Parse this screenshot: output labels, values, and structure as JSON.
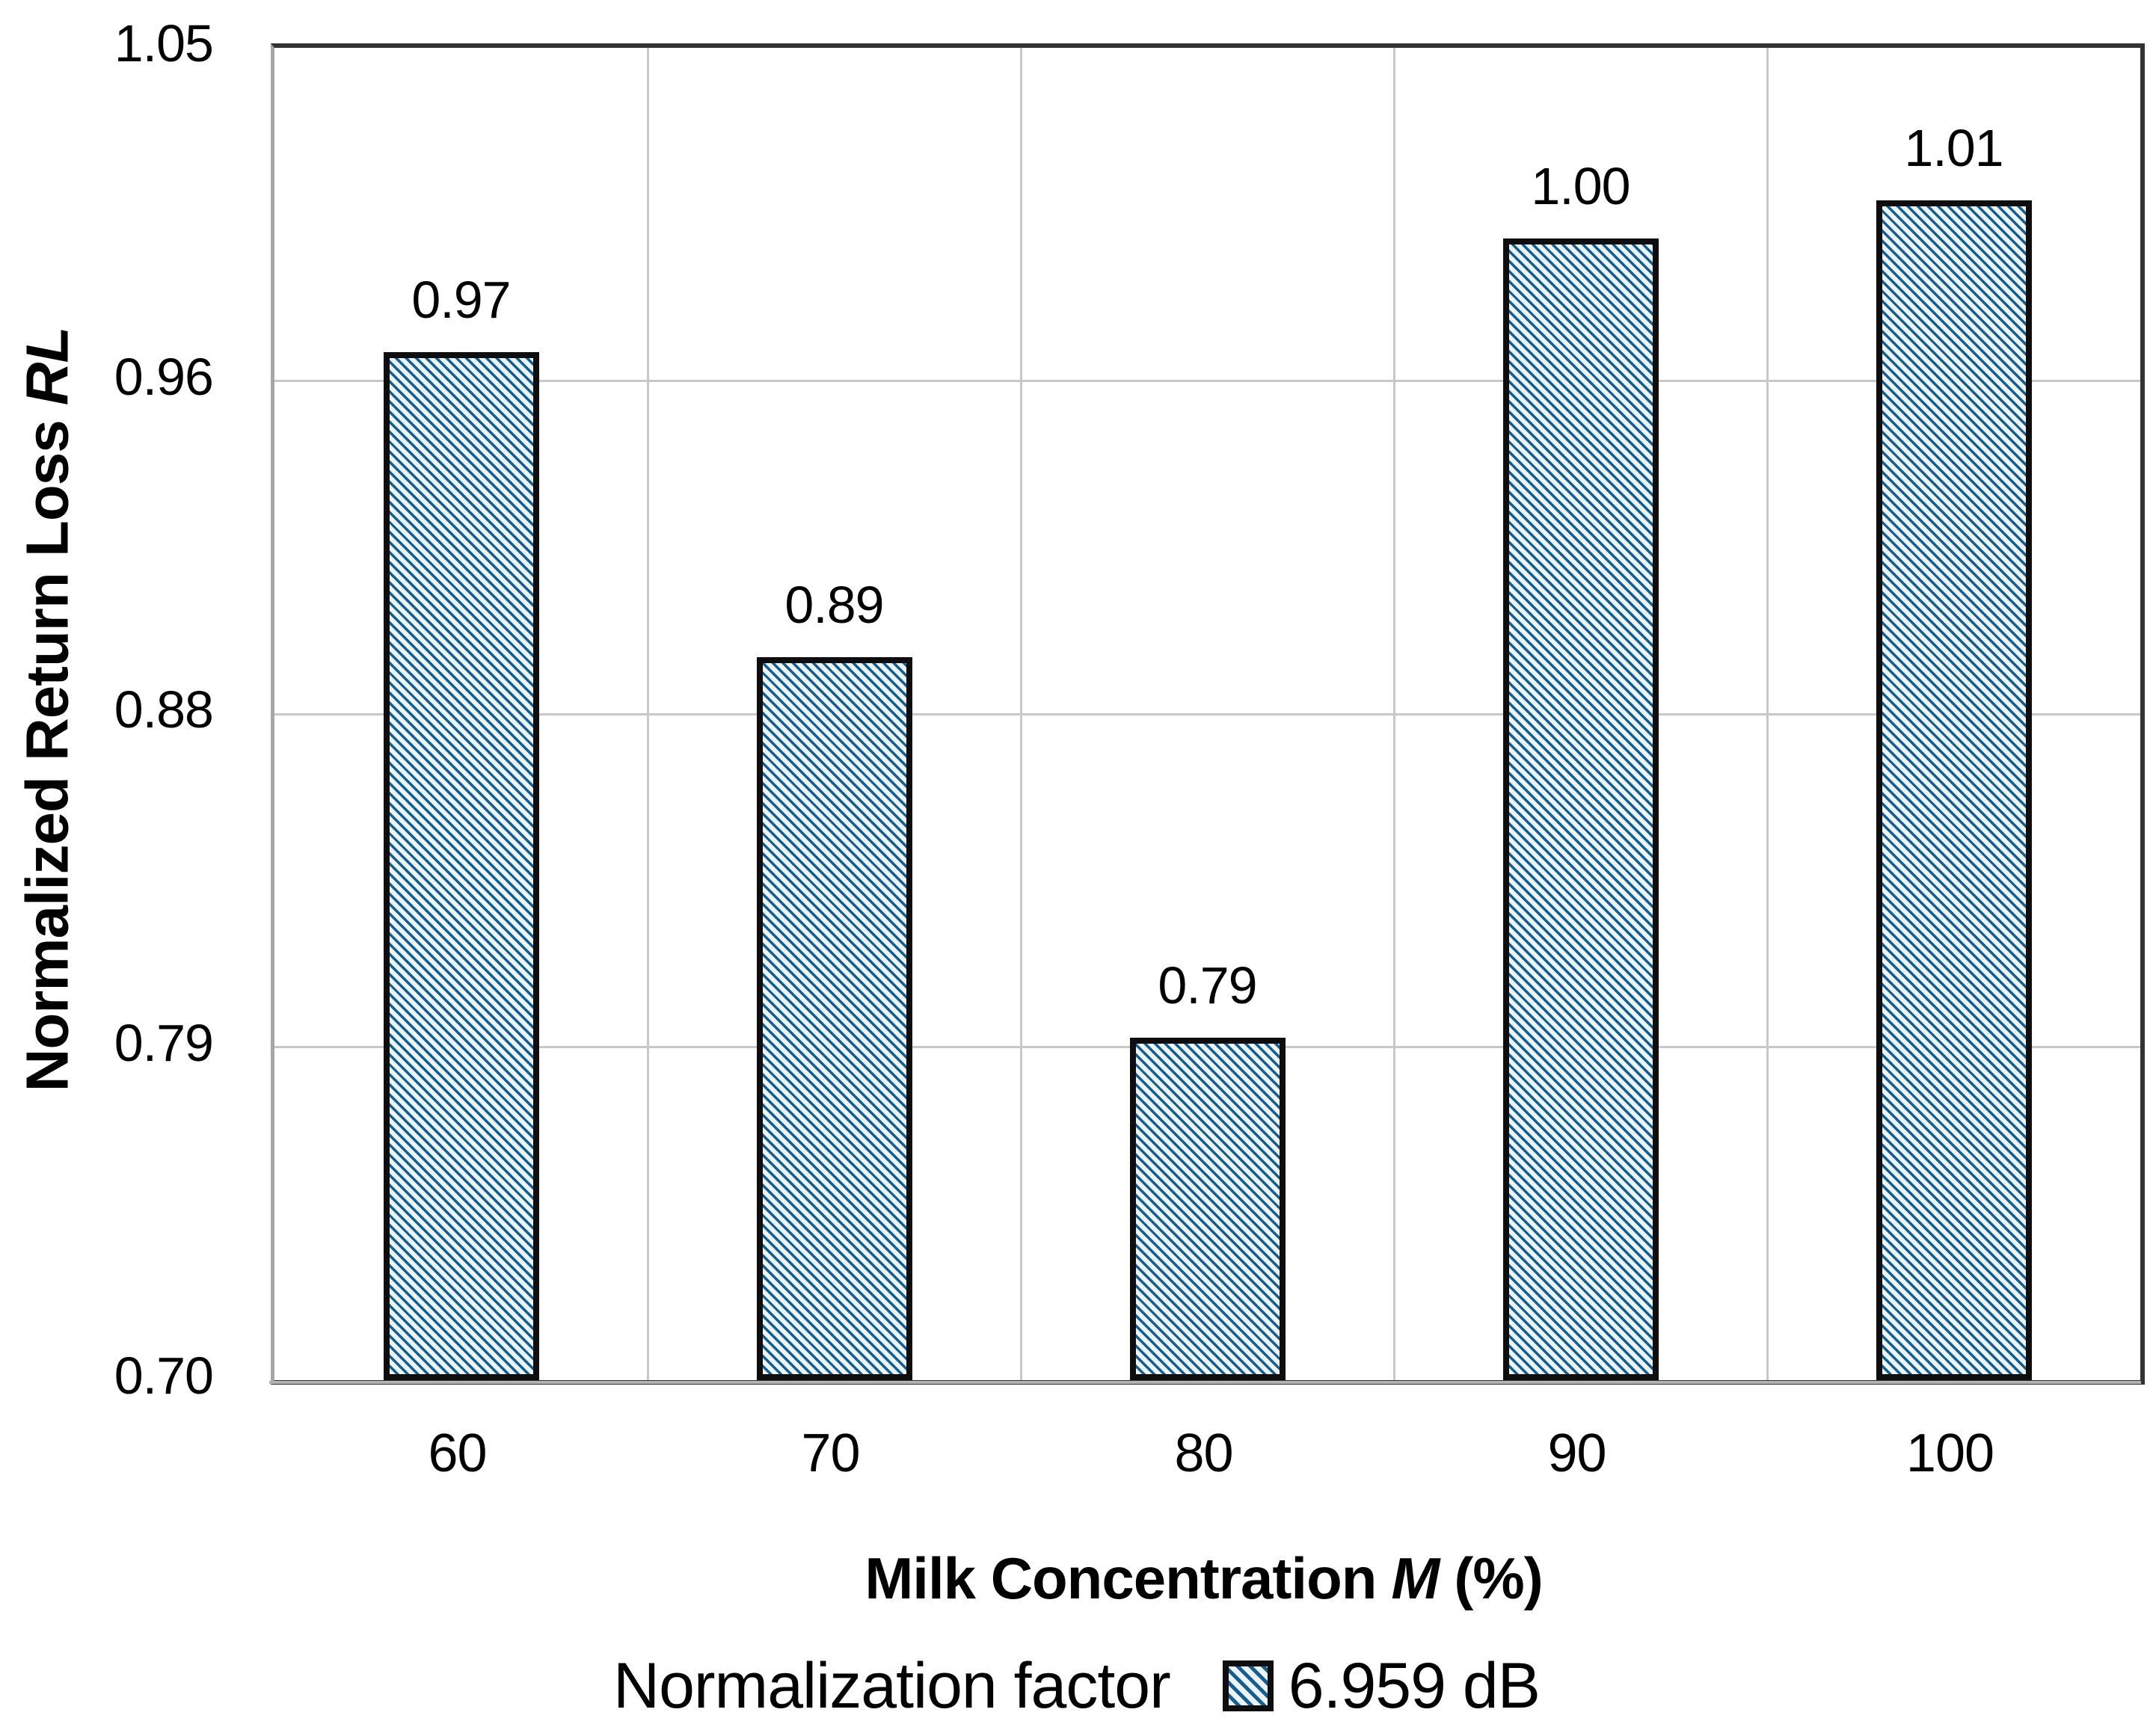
{
  "chart_data": {
    "type": "bar",
    "categories": [
      "60",
      "70",
      "80",
      "90",
      "100"
    ],
    "values": [
      0.97,
      0.89,
      0.79,
      1.0,
      1.01
    ],
    "bar_labels": [
      "0.97",
      "0.89",
      "0.79",
      "1.00",
      "1.01"
    ],
    "xlabel_parts": {
      "main": "Milk Concentration",
      "symbol": "M",
      "suffix": "(%)"
    },
    "ylabel_parts": {
      "main": "Normalized Return Loss",
      "symbol": "RL"
    },
    "ylim": [
      0.7,
      1.05
    ],
    "ytick_labels": [
      "1.05",
      "0.96",
      "0.88",
      "0.79",
      "0.70"
    ],
    "ytick_values": [
      1.05,
      0.9625,
      0.875,
      0.7875,
      0.7
    ],
    "grid": true,
    "bar_style": "diagonal-hatch",
    "legend": {
      "title": "Normalization factor",
      "series_label": "6.959 dB",
      "position": "bottom"
    },
    "colors": {
      "hatch_line": "#175e8f",
      "hatch_bg": "#eaf5fb",
      "bar_border": "#0e0e0e",
      "gridline": "#c8c8c8",
      "frame_dark": "#333333",
      "axis_left_line": "#a6a6a6",
      "axis_shadow": "#b3b3b3",
      "text": "#000000",
      "background": "#ffffff"
    }
  }
}
